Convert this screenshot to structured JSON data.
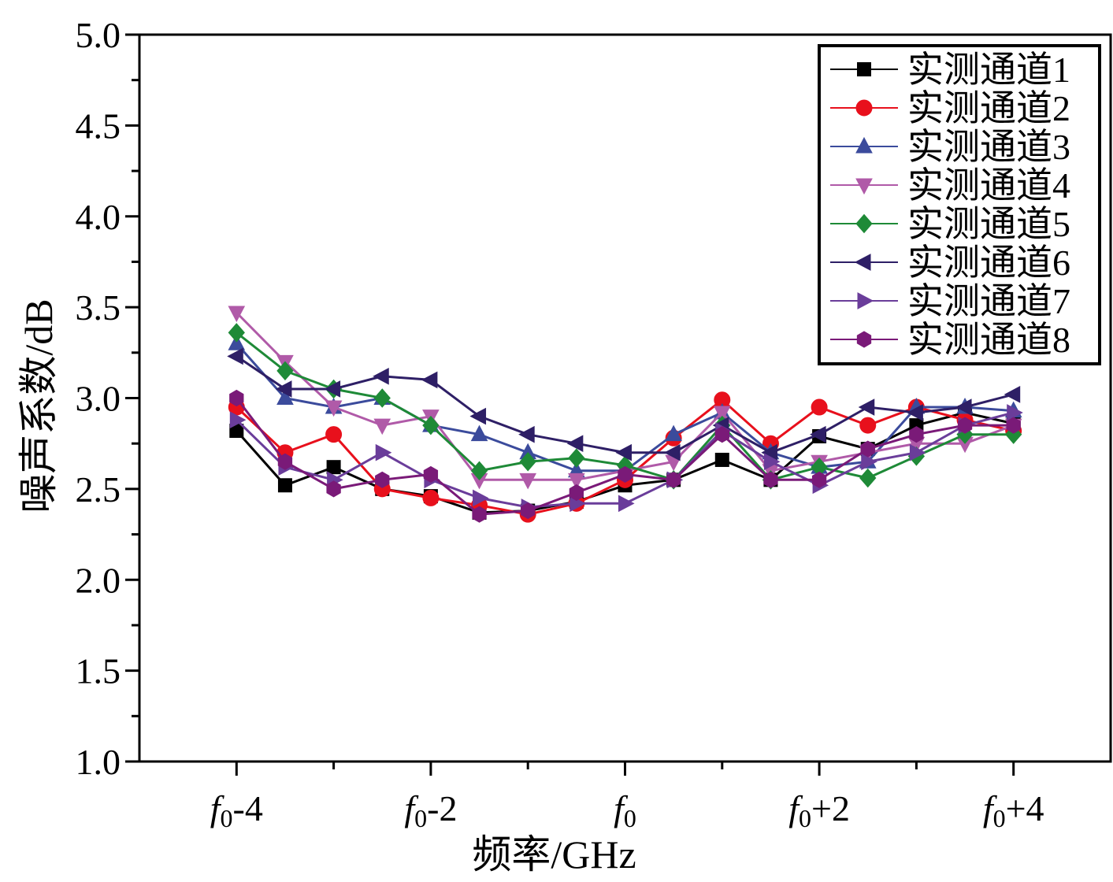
{
  "chart_data": {
    "type": "line",
    "xlabel": "频率/GHz",
    "ylabel": "噪声系数/dB",
    "xlim": [
      -5,
      5
    ],
    "ylim": [
      1.0,
      5.0
    ],
    "x_ticks": [
      {
        "value": -4,
        "base": "f",
        "sub": "0",
        "suffix": "-4"
      },
      {
        "value": -2,
        "base": "f",
        "sub": "0",
        "suffix": "-2"
      },
      {
        "value": 0,
        "base": "f",
        "sub": "0",
        "suffix": ""
      },
      {
        "value": 2,
        "base": "f",
        "sub": "0",
        "suffix": "+2"
      },
      {
        "value": 4,
        "base": "f",
        "sub": "0",
        "suffix": "+4"
      }
    ],
    "y_ticks": [
      "1.0",
      "1.5",
      "2.0",
      "2.5",
      "3.0",
      "3.5",
      "4.0",
      "4.5",
      "5.0"
    ],
    "legend_position": "top-right",
    "grid": false,
    "series": [
      {
        "name": "实测通道1",
        "color": "#000000",
        "marker": "square",
        "x": [
          -4,
          -3.5,
          -3,
          -2.5,
          -2,
          -1.5,
          -1,
          -0.5,
          0,
          0.5,
          1,
          1.5,
          2,
          2.5,
          3,
          3.5,
          4
        ],
        "y": [
          2.82,
          2.52,
          2.62,
          2.5,
          2.46,
          2.37,
          2.38,
          2.43,
          2.52,
          2.55,
          2.66,
          2.55,
          2.79,
          2.72,
          2.85,
          2.92,
          2.86
        ]
      },
      {
        "name": "实测通道2",
        "color": "#e8101c",
        "marker": "circle",
        "x": [
          -4,
          -3.5,
          -3,
          -2.5,
          -2,
          -1.5,
          -1,
          -0.5,
          0,
          0.5,
          1,
          1.5,
          2,
          2.5,
          3,
          3.5,
          4
        ],
        "y": [
          2.95,
          2.7,
          2.8,
          2.5,
          2.45,
          2.41,
          2.36,
          2.42,
          2.55,
          2.78,
          2.99,
          2.75,
          2.95,
          2.85,
          2.95,
          2.88,
          2.82
        ]
      },
      {
        "name": "实测通道3",
        "color": "#3b4b9c",
        "marker": "triangle-up",
        "x": [
          -4,
          -3.5,
          -3,
          -2.5,
          -2,
          -1.5,
          -1,
          -0.5,
          0,
          0.5,
          1,
          1.5,
          2,
          2.5,
          3,
          3.5,
          4
        ],
        "y": [
          3.3,
          3.0,
          2.95,
          3.0,
          2.85,
          2.8,
          2.7,
          2.6,
          2.6,
          2.8,
          2.92,
          2.7,
          2.62,
          2.65,
          2.95,
          2.95,
          2.93
        ]
      },
      {
        "name": "实测通道4",
        "color": "#b05aa8",
        "marker": "triangle-down",
        "x": [
          -4,
          -3.5,
          -3,
          -2.5,
          -2,
          -1.5,
          -1,
          -0.5,
          0,
          0.5,
          1,
          1.5,
          2,
          2.5,
          3,
          3.5,
          4
        ],
        "y": [
          3.47,
          3.2,
          2.95,
          2.85,
          2.9,
          2.55,
          2.55,
          2.55,
          2.6,
          2.65,
          2.92,
          2.6,
          2.65,
          2.7,
          2.75,
          2.75,
          2.85
        ]
      },
      {
        "name": "实测通道5",
        "color": "#1e8a37",
        "marker": "diamond",
        "x": [
          -4,
          -3.5,
          -3,
          -2.5,
          -2,
          -1.5,
          -1,
          -0.5,
          0,
          0.5,
          1,
          1.5,
          2,
          2.5,
          3,
          3.5,
          4
        ],
        "y": [
          3.36,
          3.15,
          3.05,
          3.0,
          2.85,
          2.6,
          2.65,
          2.67,
          2.63,
          2.55,
          2.85,
          2.55,
          2.62,
          2.56,
          2.68,
          2.8,
          2.8
        ]
      },
      {
        "name": "实测通道6",
        "color": "#2e1f66",
        "marker": "triangle-left",
        "x": [
          -4,
          -3.5,
          -3,
          -2.5,
          -2,
          -1.5,
          -1,
          -0.5,
          0,
          0.5,
          1,
          1.5,
          2,
          2.5,
          3,
          3.5,
          4
        ],
        "y": [
          3.23,
          3.05,
          3.05,
          3.12,
          3.1,
          2.9,
          2.8,
          2.75,
          2.7,
          2.7,
          2.85,
          2.7,
          2.8,
          2.95,
          2.92,
          2.95,
          3.02
        ]
      },
      {
        "name": "实测通道7",
        "color": "#6a3d9a",
        "marker": "triangle-right",
        "x": [
          -4,
          -3.5,
          -3,
          -2.5,
          -2,
          -1.5,
          -1,
          -0.5,
          0,
          0.5,
          1,
          1.5,
          2,
          2.5,
          3,
          3.5,
          4
        ],
        "y": [
          2.88,
          2.62,
          2.55,
          2.7,
          2.55,
          2.45,
          2.4,
          2.42,
          2.42,
          2.55,
          2.82,
          2.65,
          2.52,
          2.65,
          2.7,
          2.85,
          2.92
        ]
      },
      {
        "name": "实测通道8",
        "color": "#7a1a78",
        "marker": "hexagon",
        "x": [
          -4,
          -3.5,
          -3,
          -2.5,
          -2,
          -1.5,
          -1,
          -0.5,
          0,
          0.5,
          1,
          1.5,
          2,
          2.5,
          3,
          3.5,
          4
        ],
        "y": [
          3.0,
          2.65,
          2.5,
          2.55,
          2.58,
          2.36,
          2.38,
          2.48,
          2.58,
          2.55,
          2.8,
          2.55,
          2.55,
          2.72,
          2.8,
          2.85,
          2.85
        ]
      }
    ]
  }
}
